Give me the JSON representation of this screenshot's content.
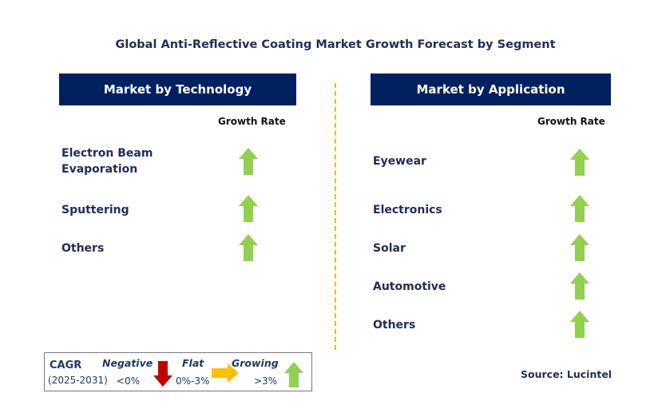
{
  "title": "Global Anti-Reflective Coating Market Growth Forecast by Segment",
  "left": {
    "header": "Market by Technology",
    "growth_label": "Growth Rate",
    "items": [
      {
        "label": "Electron Beam Evaporation",
        "trend": "growing"
      },
      {
        "label": "Sputtering",
        "trend": "growing"
      },
      {
        "label": "Others",
        "trend": "growing"
      }
    ]
  },
  "right": {
    "header": "Market by Application",
    "growth_label": "Growth Rate",
    "items": [
      {
        "label": "Eyewear",
        "trend": "growing"
      },
      {
        "label": "Electronics",
        "trend": "growing"
      },
      {
        "label": "Solar",
        "trend": "growing"
      },
      {
        "label": "Automotive",
        "trend": "growing"
      },
      {
        "label": "Others",
        "trend": "growing"
      }
    ]
  },
  "legend": {
    "cagr": "CAGR",
    "period": "(2025-2031)",
    "negative": "Negative",
    "negative_range": "<0%",
    "flat": "Flat",
    "flat_range": "0%-3%",
    "growing": "Growing",
    "growing_range": ">3%"
  },
  "source": "Source: Lucintel",
  "colors": {
    "header": "#002060",
    "growing": "#92d050",
    "negative": "#c00000",
    "flat": "#ffc000",
    "divider": "#f5b800"
  }
}
